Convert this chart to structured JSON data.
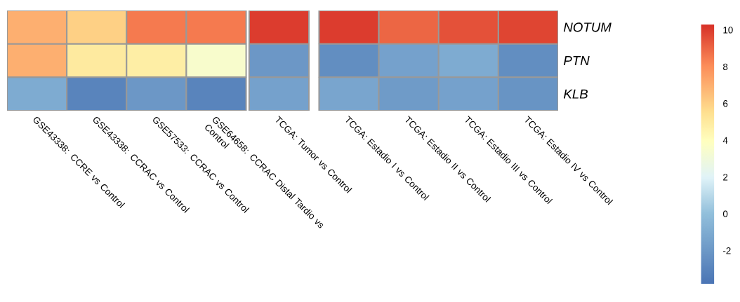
{
  "chart_data": {
    "type": "heatmap",
    "categories": [
      "GSE43338: CCRE vs Control",
      "GSE43338: CCRAC vs Control",
      "GSE57533: CCRAC vs Control",
      "GSE64658: CCRAC Distal Tardio vs Control",
      "TCGA: Tumor vs Control",
      "TCGA: Estadio I vs Control",
      "TCGA: Estadio II vs Control",
      "TCGA: Estadio III vs Control",
      "TCGA: Estadio IV vs Control"
    ],
    "y_categories": [
      "NOTUM",
      "PTN",
      "KLB"
    ],
    "cells": [
      [
        7,
        6,
        8.5,
        8.5,
        10,
        10,
        9,
        9.5,
        9.8
      ],
      [
        7,
        5,
        4.8,
        3.5,
        -2,
        -2.5,
        -1.5,
        -1,
        -2.5
      ],
      [
        -1,
        -3,
        -2,
        -3,
        -1.5,
        -1.3,
        -1.8,
        -1.5,
        -2.2
      ]
    ],
    "clim": [
      -3.8,
      10.3
    ],
    "cticks": [
      -2,
      0,
      2,
      4,
      6,
      8,
      10
    ]
  }
}
